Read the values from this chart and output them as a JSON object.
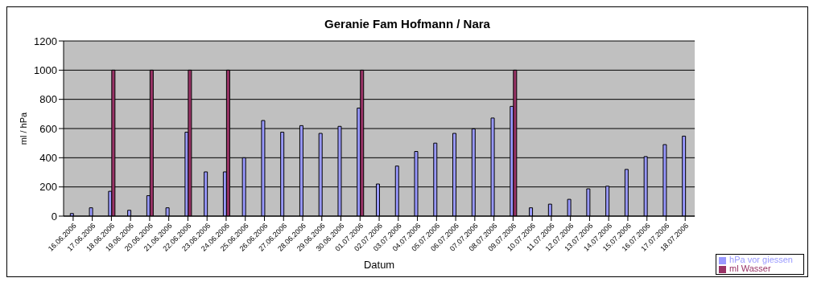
{
  "chart_data": {
    "type": "bar",
    "title": "Geranie Fam Hofmann / Nara",
    "xlabel": "Datum",
    "ylabel": "ml / hPa",
    "categories": [
      "16.06.2006",
      "17.06.2006",
      "18.06.2006",
      "19.06.2006",
      "20.06.2006",
      "21.06.2006",
      "22.06.2006",
      "23.06.2006",
      "24.06.2006",
      "25.06.2006",
      "26.06.2006",
      "27.06.2006",
      "28.06.2006",
      "29.06.2006",
      "30.06.2006",
      "01.07.2006",
      "02.07.2006",
      "03.07.2006",
      "04.07.2006",
      "05.07.2006",
      "06.07.2006",
      "07.07.2006",
      "08.07.2006",
      "09.07.2006",
      "10.07.2006",
      "11.07.2006",
      "12.07.2006",
      "13.07.2006",
      "14.07.2006",
      "15.07.2006",
      "16.07.2006",
      "17.07.2006",
      "18.07.2006"
    ],
    "series": [
      {
        "name": "hPa vor giessen",
        "color": "#9999ff",
        "values": [
          18,
          57,
          170,
          40,
          140,
          57,
          575,
          303,
          303,
          400,
          655,
          575,
          620,
          567,
          615,
          740,
          220,
          343,
          443,
          500,
          567,
          598,
          672,
          752,
          57,
          82,
          115,
          187,
          205,
          320,
          408,
          490,
          548
        ]
      },
      {
        "name": "ml Wasser",
        "color": "#993366",
        "values": [
          null,
          null,
          1000,
          null,
          1000,
          null,
          1000,
          null,
          1000,
          null,
          null,
          null,
          null,
          null,
          null,
          1000,
          null,
          null,
          null,
          null,
          null,
          null,
          null,
          1000,
          null,
          null,
          null,
          null,
          null,
          null,
          null,
          null,
          null
        ]
      }
    ],
    "ylim": [
      0,
      1200
    ],
    "yticks": [
      0,
      200,
      400,
      600,
      800,
      1000,
      1200
    ],
    "grid": "y",
    "legend": "bottom right"
  }
}
